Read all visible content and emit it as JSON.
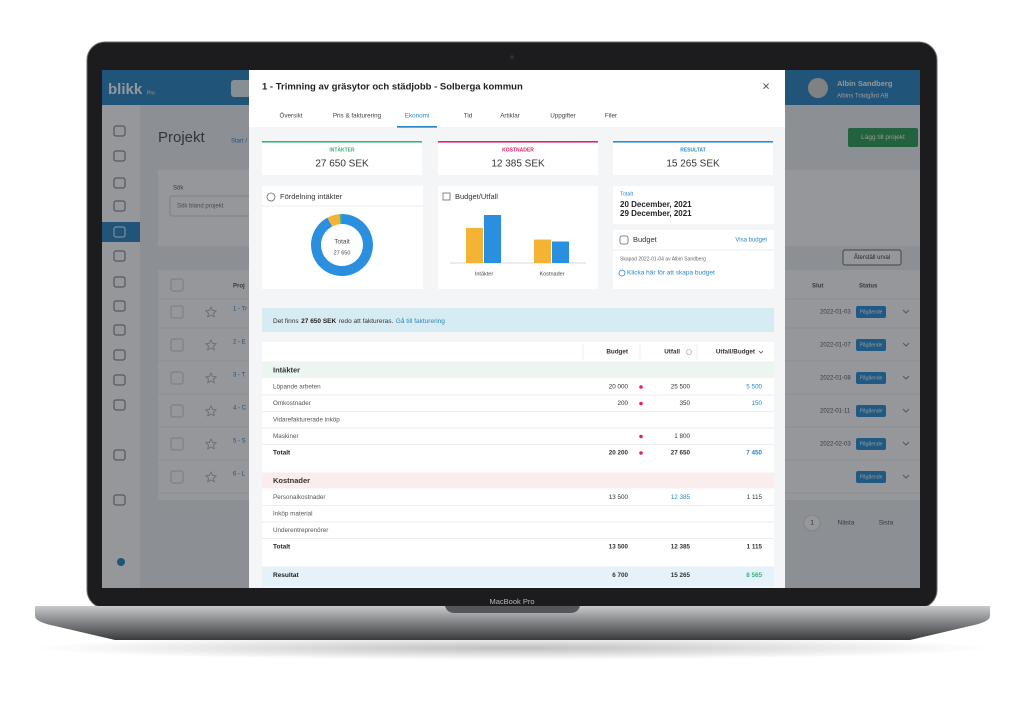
{
  "laptop": {
    "label": "MacBook Pro"
  },
  "app": {
    "logo": "blikk",
    "logo_suffix": "Pro",
    "page_title": "Projekt",
    "breadcrumb": "Start /",
    "add_button": "Lägg till projekt",
    "search_label": "Sök",
    "search_placeholder": "Sök bland projekt",
    "reset_button": "Återställ urval",
    "user": {
      "name": "Albin Sandberg",
      "company": "Albins Trädgård AB"
    },
    "columns": [
      "Proj",
      "Slut",
      "Status"
    ],
    "rows": [
      {
        "project": "1 - Tr",
        "end": "2022-01-03",
        "status": "Pågående"
      },
      {
        "project": "2 - E",
        "end": "2022-01-07",
        "status": "Pågående"
      },
      {
        "project": "3 - T",
        "end": "2022-01-08",
        "status": "Pågående"
      },
      {
        "project": "4 - C",
        "end": "2022-01-11",
        "status": "Pågående"
      },
      {
        "project": "5 - S",
        "end": "2022-02-03",
        "status": "Pågående"
      },
      {
        "project": "6 - L",
        "end": null,
        "status": "Pågående"
      }
    ],
    "pagination": [
      "1",
      "Nästa",
      "Sista"
    ]
  },
  "modal": {
    "title": "1 - Trimning av gräsytor och städjobb - Solberga kommun",
    "close": "×",
    "tabs": [
      "Översikt",
      "Pris & fakturering",
      "Ekonomi",
      "Tid",
      "Artiklar",
      "Uppgifter",
      "Filer"
    ],
    "active_tab": "Ekonomi",
    "kpis": [
      {
        "label": "INTÄKTER",
        "value": "27 650 SEK",
        "color": "#3bb27a"
      },
      {
        "label": "KOSTNADER",
        "value": "12 385 SEK",
        "color": "#e0245e"
      },
      {
        "label": "RESULTAT",
        "value": "15 265 SEK",
        "color": "#2b8fd6"
      }
    ],
    "distribution": {
      "title": "Fördelning intäkter",
      "center_label": "Totalt",
      "center_value": "27 650",
      "chart": {
        "type": "donut",
        "values": [
          25500,
          1800,
          350
        ],
        "colors": [
          "#2b8fe0",
          "#f5b335",
          "#3bb27a"
        ]
      }
    },
    "budget_chart": {
      "title": "Budget/Utfall",
      "type": "bar",
      "categories": [
        "Intäkter",
        "Kostnader"
      ],
      "series": [
        {
          "color": "#f5b335",
          "values": [
            20200,
            13500
          ]
        },
        {
          "color": "#2b8fe0",
          "values": [
            27650,
            12385
          ]
        }
      ]
    },
    "dates": {
      "label": "Totalt",
      "start": "20 December, 2021",
      "end": "29 December, 2021"
    },
    "budget": {
      "title": "Budget",
      "link": "Visa budget",
      "created": "Skapad 2022-01-04 av Albin Sandberg",
      "create_link": "Klicka här för att skapa budget"
    },
    "banner": {
      "prefix": "Det finns",
      "amount": "27 650 SEK",
      "suffix": "redo att faktureras.",
      "link": "Gå till fakturering"
    },
    "table": {
      "columns": [
        "Budget",
        "Utfall",
        "Utfall/Budget"
      ],
      "sections": [
        {
          "title": "Intäkter",
          "color": "#edf5f0",
          "rows": [
            {
              "label": "Löpande arbeten",
              "budget": "20 000",
              "actual": "25 500",
              "diff": "5 500",
              "flag": true
            },
            {
              "label": "Omkostnader",
              "budget": "200",
              "actual": "350",
              "diff": "150",
              "flag": true
            },
            {
              "label": "Vidarefakturerade inköp",
              "budget": null,
              "actual": null,
              "diff": null,
              "flag": false
            },
            {
              "label": "Maskiner",
              "budget": null,
              "actual": "1 800",
              "diff": null,
              "flag": true
            }
          ],
          "total": {
            "label": "Totalt",
            "budget": "20 200",
            "actual": "27 650",
            "diff": "7 450",
            "flag": true
          }
        },
        {
          "title": "Kostnader",
          "color": "#fbeced",
          "rows": [
            {
              "label": "Personalkostnader",
              "budget": "13 500",
              "actual": "12 385",
              "diff": "1 115",
              "flag": false
            },
            {
              "label": "Inköp material",
              "budget": null,
              "actual": null,
              "diff": null,
              "flag": false
            },
            {
              "label": "Underentreprenörer",
              "budget": null,
              "actual": null,
              "diff": null,
              "flag": false
            }
          ],
          "total": {
            "label": "Totalt",
            "budget": "13 500",
            "actual": "12 385",
            "diff": "1 115",
            "flag": false
          }
        }
      ],
      "result": {
        "label": "Resultat",
        "budget": "6 700",
        "actual": "15 265",
        "diff": "8 565",
        "color": "#e6f2fa"
      }
    }
  }
}
